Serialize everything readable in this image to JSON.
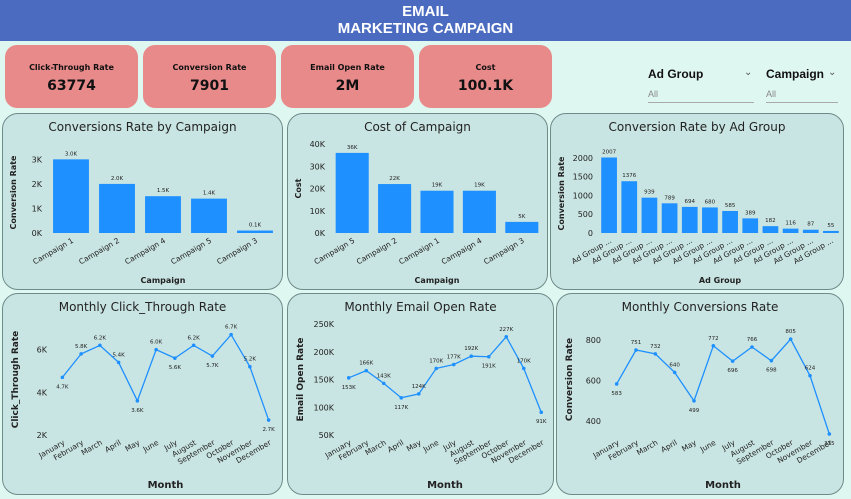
{
  "header": {
    "line1": "EMAIL",
    "line2": "MARKETING CAMPAIGN"
  },
  "colors": {
    "header_bg": "#4a6bbf",
    "kpi_bg": "#e8898a",
    "card_bg": "#c9e5e3",
    "bar": "#1e90ff",
    "line": "#1e90ff"
  },
  "kpis": [
    {
      "label": "Click-Through Rate",
      "value": "63774"
    },
    {
      "label": "Conversion Rate",
      "value": "7901"
    },
    {
      "label": "Email Open Rate",
      "value": "2M"
    },
    {
      "label": "Cost",
      "value": "100.1K"
    }
  ],
  "slicers": [
    {
      "label": "Ad Group",
      "selected": "All",
      "icon": "chevron-down-icon"
    },
    {
      "label": "Campaign",
      "selected": "All",
      "icon": "chevron-down-icon"
    }
  ],
  "chart_data": [
    {
      "id": "c1",
      "type": "bar",
      "title": "Conversions Rate by Campaign",
      "xlabel": "Campaign",
      "ylabel": "Conversion Rate",
      "categories": [
        "Campaign 1",
        "Campaign 2",
        "Campaign 4",
        "Campaign 5",
        "Campaign 3"
      ],
      "values": [
        3000,
        2000,
        1500,
        1400,
        100
      ],
      "data_labels": [
        "3.0K",
        "2.0K",
        "1.5K",
        "1.4K",
        "0.1K"
      ],
      "ylim": [
        0,
        3300
      ],
      "yticks": [
        0,
        1000,
        2000,
        3000
      ],
      "ytick_labels": [
        "0K",
        "1K",
        "2K",
        "3K"
      ]
    },
    {
      "id": "c2",
      "type": "bar",
      "title": "Cost of Campaign",
      "xlabel": "Campaign",
      "ylabel": "Cost",
      "categories": [
        "Campaign 5",
        "Campaign 2",
        "Campaign 1",
        "Campaign 4",
        "Campaign 3"
      ],
      "values": [
        36000,
        22000,
        19000,
        19000,
        5000
      ],
      "data_labels": [
        "36K",
        "22K",
        "19K",
        "19K",
        "5K"
      ],
      "ylim": [
        0,
        40000
      ],
      "yticks": [
        0,
        10000,
        20000,
        30000,
        40000
      ],
      "ytick_labels": [
        "0K",
        "10K",
        "20K",
        "30K",
        "40K"
      ]
    },
    {
      "id": "c3",
      "type": "bar",
      "title": "Conversion  Rate by Ad Group",
      "xlabel": "Ad Group",
      "ylabel": "Conversion Rate",
      "categories": [
        "Ad Group ...",
        "Ad Group ...",
        "Ad Group ...",
        "Ad Group ...",
        "Ad Group ...",
        "Ad Group ...",
        "Ad Group ...",
        "Ad Group ...",
        "Ad Group ...",
        "Ad Group ...",
        "Ad Group ...",
        "Ad Group ..."
      ],
      "values": [
        2007,
        1376,
        939,
        789,
        694,
        680,
        585,
        389,
        182,
        116,
        87,
        55
      ],
      "data_labels": [
        "2007",
        "1376",
        "939",
        "789",
        "694",
        "680",
        "585",
        "389",
        "182",
        "116",
        "87",
        "55"
      ],
      "ylim": [
        0,
        2100
      ],
      "yticks": [
        0,
        500,
        1000,
        1500,
        2000
      ],
      "ytick_labels": [
        "0",
        "500",
        "1000",
        "1500",
        "2000"
      ]
    },
    {
      "id": "c4",
      "type": "line",
      "title": "Monthly Click_Through Rate",
      "xlabel": "Month",
      "ylabel": "Click_Through Rate",
      "categories": [
        "January",
        "February",
        "March",
        "April",
        "May",
        "June",
        "July",
        "August",
        "September",
        "October",
        "November",
        "December"
      ],
      "values": [
        4700,
        5800,
        6200,
        5400,
        3600,
        6000,
        5600,
        6200,
        5700,
        6700,
        5200,
        2700
      ],
      "data_labels": [
        "4.7K",
        "5.8K",
        "6.2K",
        "5.4K",
        "3.6K",
        "6.0K",
        "5.6K",
        "6.2K",
        "5.7K",
        "6.7K",
        "5.2K",
        "2.7K"
      ],
      "ylim": [
        2000,
        7200
      ],
      "yticks": [
        2000,
        4000,
        6000
      ],
      "ytick_labels": [
        "2K",
        "4K",
        "6K"
      ]
    },
    {
      "id": "c5",
      "type": "line",
      "title": "Monthly Email Open Rate",
      "xlabel": "Month",
      "ylabel": "Email Open Rate",
      "categories": [
        "January",
        "February",
        "March",
        "April",
        "May",
        "June",
        "July",
        "August",
        "September",
        "October",
        "November",
        "December"
      ],
      "values": [
        153000,
        166000,
        143000,
        117000,
        124000,
        170000,
        177000,
        192000,
        191000,
        227000,
        170000,
        91000
      ],
      "data_labels": [
        "153K",
        "166K",
        "143K",
        "117K",
        "124K",
        "170K",
        "177K",
        "192K",
        "191K",
        "227K",
        "170K",
        "91K"
      ],
      "ylim": [
        50000,
        250000
      ],
      "yticks": [
        50000,
        100000,
        150000,
        200000,
        250000
      ],
      "ytick_labels": [
        "50K",
        "100K",
        "150K",
        "200K",
        "250K"
      ]
    },
    {
      "id": "c6",
      "type": "line",
      "title": "Monthly Conversions Rate",
      "xlabel": "Month",
      "ylabel": "Conversion Rate",
      "categories": [
        "January",
        "February",
        "March",
        "April",
        "May",
        "June",
        "July",
        "August",
        "September",
        "October",
        "November",
        "December"
      ],
      "values": [
        583,
        751,
        732,
        640,
        499,
        772,
        696,
        766,
        698,
        805,
        624,
        335
      ],
      "data_labels": [
        "583",
        "751",
        "732",
        "640",
        "499",
        "772",
        "696",
        "766",
        "698",
        "805",
        "624",
        "335"
      ],
      "ylim": [
        330,
        880
      ],
      "yticks": [
        400,
        600,
        800
      ],
      "ytick_labels": [
        "400",
        "600",
        "800"
      ]
    }
  ]
}
